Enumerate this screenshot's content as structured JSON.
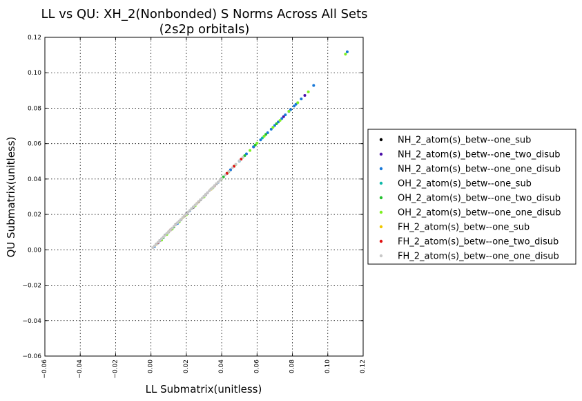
{
  "chart_data": {
    "type": "scatter",
    "title": "LL vs QU: XH_2(Nonbonded) S Norms Across All Sets",
    "subtitle": "(2s2p orbitals)",
    "xlabel": "LL Submatrix(unitless)",
    "ylabel": "QU Submatrix(unitless)",
    "xlim": [
      -0.06,
      0.12
    ],
    "ylim": [
      -0.06,
      0.12
    ],
    "xticks": [
      "−0.06",
      "−0.04",
      "−0.02",
      "0.00",
      "0.02",
      "0.04",
      "0.06",
      "0.08",
      "0.10",
      "0.12"
    ],
    "yticks": [
      "−0.06",
      "−0.04",
      "−0.02",
      "0.00",
      "0.02",
      "0.04",
      "0.06",
      "0.08",
      "0.10",
      "0.12"
    ],
    "grid": true,
    "legend_position": "right-outside",
    "series": [
      {
        "name": "NH_2_atom(s)_betw--one_sub",
        "color": "#000000",
        "x": [
          0.003,
          0.005,
          0.008,
          0.011,
          0.014,
          0.017,
          0.02,
          0.024,
          0.028,
          0.031,
          0.034,
          0.037,
          0.04,
          0.043
        ],
        "y": [
          0.0032,
          0.0052,
          0.0083,
          0.0112,
          0.0143,
          0.0171,
          0.0203,
          0.0241,
          0.0282,
          0.0312,
          0.0343,
          0.0372,
          0.0403,
          0.0432
        ]
      },
      {
        "name": "NH_2_atom(s)_betw--one_two_disub",
        "color": "#4b0fa8",
        "x": [
          0.005,
          0.012,
          0.02,
          0.032,
          0.045,
          0.058,
          0.075,
          0.087
        ],
        "y": [
          0.0051,
          0.0121,
          0.0202,
          0.0322,
          0.0452,
          0.0581,
          0.0752,
          0.0872
        ]
      },
      {
        "name": "NH_2_atom(s)_betw--one_one_disub",
        "color": "#1878d8",
        "x": [
          0.002,
          0.004,
          0.006,
          0.01,
          0.015,
          0.022,
          0.03,
          0.038,
          0.045,
          0.05,
          0.054,
          0.058,
          0.06,
          0.062,
          0.064,
          0.066,
          0.068,
          0.07,
          0.072,
          0.074,
          0.076,
          0.078,
          0.079,
          0.081,
          0.082,
          0.085,
          0.092,
          0.111
        ],
        "y": [
          0.0018,
          0.0039,
          0.0061,
          0.0101,
          0.0149,
          0.0221,
          0.0302,
          0.0381,
          0.0452,
          0.0501,
          0.0542,
          0.0582,
          0.0602,
          0.0621,
          0.0642,
          0.0661,
          0.0681,
          0.0702,
          0.0722,
          0.0741,
          0.0762,
          0.0781,
          0.0792,
          0.0812,
          0.0822,
          0.0852,
          0.0928,
          0.1118
        ]
      },
      {
        "name": "OH_2_atom(s)_betw--one_sub",
        "color": "#0db8a8",
        "x": [
          0.004,
          0.009,
          0.016,
          0.023,
          0.036,
          0.05,
          0.063
        ],
        "y": [
          0.0041,
          0.0091,
          0.0161,
          0.0232,
          0.0362,
          0.0502,
          0.0632
        ]
      },
      {
        "name": "OH_2_atom(s)_betw--one_two_disub",
        "color": "#22c02e",
        "x": [
          0.007,
          0.013,
          0.019,
          0.027,
          0.035,
          0.041,
          0.047,
          0.053,
          0.059,
          0.065,
          0.071
        ],
        "y": [
          0.0069,
          0.0129,
          0.0191,
          0.0271,
          0.0351,
          0.0412,
          0.0472,
          0.0532,
          0.0592,
          0.0652,
          0.0712
        ]
      },
      {
        "name": "OH_2_atom(s)_betw--one_one_disub",
        "color": "#7df020",
        "x": [
          0.006,
          0.009,
          0.012,
          0.016,
          0.02,
          0.025,
          0.03,
          0.035,
          0.04,
          0.044,
          0.048,
          0.052,
          0.056,
          0.06,
          0.064,
          0.069,
          0.073,
          0.078,
          0.083,
          0.089,
          0.11
        ],
        "y": [
          0.0055,
          0.0087,
          0.0117,
          0.0158,
          0.0198,
          0.0249,
          0.0299,
          0.0351,
          0.0402,
          0.0441,
          0.0482,
          0.0522,
          0.0561,
          0.0602,
          0.0641,
          0.0692,
          0.0731,
          0.0782,
          0.0831,
          0.0892,
          0.1105
        ]
      },
      {
        "name": "FH_2_atom(s)_betw--one_sub",
        "color": "#f0c800",
        "x": [
          0.003,
          0.01,
          0.018,
          0.026,
          0.034
        ],
        "y": [
          0.0031,
          0.0102,
          0.0182,
          0.0262,
          0.0342
        ]
      },
      {
        "name": "FH_2_atom(s)_betw--one_two_disub",
        "color": "#e01010",
        "x": [
          0.004,
          0.011,
          0.019,
          0.027,
          0.036,
          0.043,
          0.047,
          0.051
        ],
        "y": [
          0.0041,
          0.0112,
          0.0192,
          0.0272,
          0.0362,
          0.0432,
          0.0472,
          0.0512
        ]
      },
      {
        "name": "FH_2_atom(s)_betw--one_one_disub",
        "color": "#c8c8c8",
        "x": [
          0.001,
          0.002,
          0.003,
          0.004,
          0.005,
          0.006,
          0.007,
          0.008,
          0.009,
          0.01,
          0.011,
          0.012,
          0.013,
          0.014,
          0.015,
          0.016,
          0.017,
          0.018,
          0.019,
          0.02,
          0.021,
          0.022,
          0.023,
          0.024,
          0.025,
          0.026,
          0.027,
          0.028,
          0.029,
          0.03,
          0.031,
          0.032,
          0.033,
          0.034,
          0.035,
          0.036,
          0.037,
          0.038,
          0.039,
          0.04,
          0.042,
          0.044,
          0.046,
          0.048,
          0.05,
          0.052
        ],
        "y": [
          0.0012,
          0.0022,
          0.0032,
          0.0043,
          0.0052,
          0.0063,
          0.0073,
          0.0082,
          0.0093,
          0.0103,
          0.0112,
          0.0123,
          0.0133,
          0.0142,
          0.0153,
          0.0163,
          0.0172,
          0.0183,
          0.0193,
          0.0202,
          0.0213,
          0.0223,
          0.0232,
          0.0243,
          0.0253,
          0.0262,
          0.0273,
          0.0283,
          0.0292,
          0.0303,
          0.0313,
          0.0322,
          0.0333,
          0.0343,
          0.0352,
          0.0363,
          0.0373,
          0.0382,
          0.0393,
          0.0403,
          0.0423,
          0.0443,
          0.0463,
          0.0483,
          0.0503,
          0.0523
        ]
      }
    ]
  }
}
